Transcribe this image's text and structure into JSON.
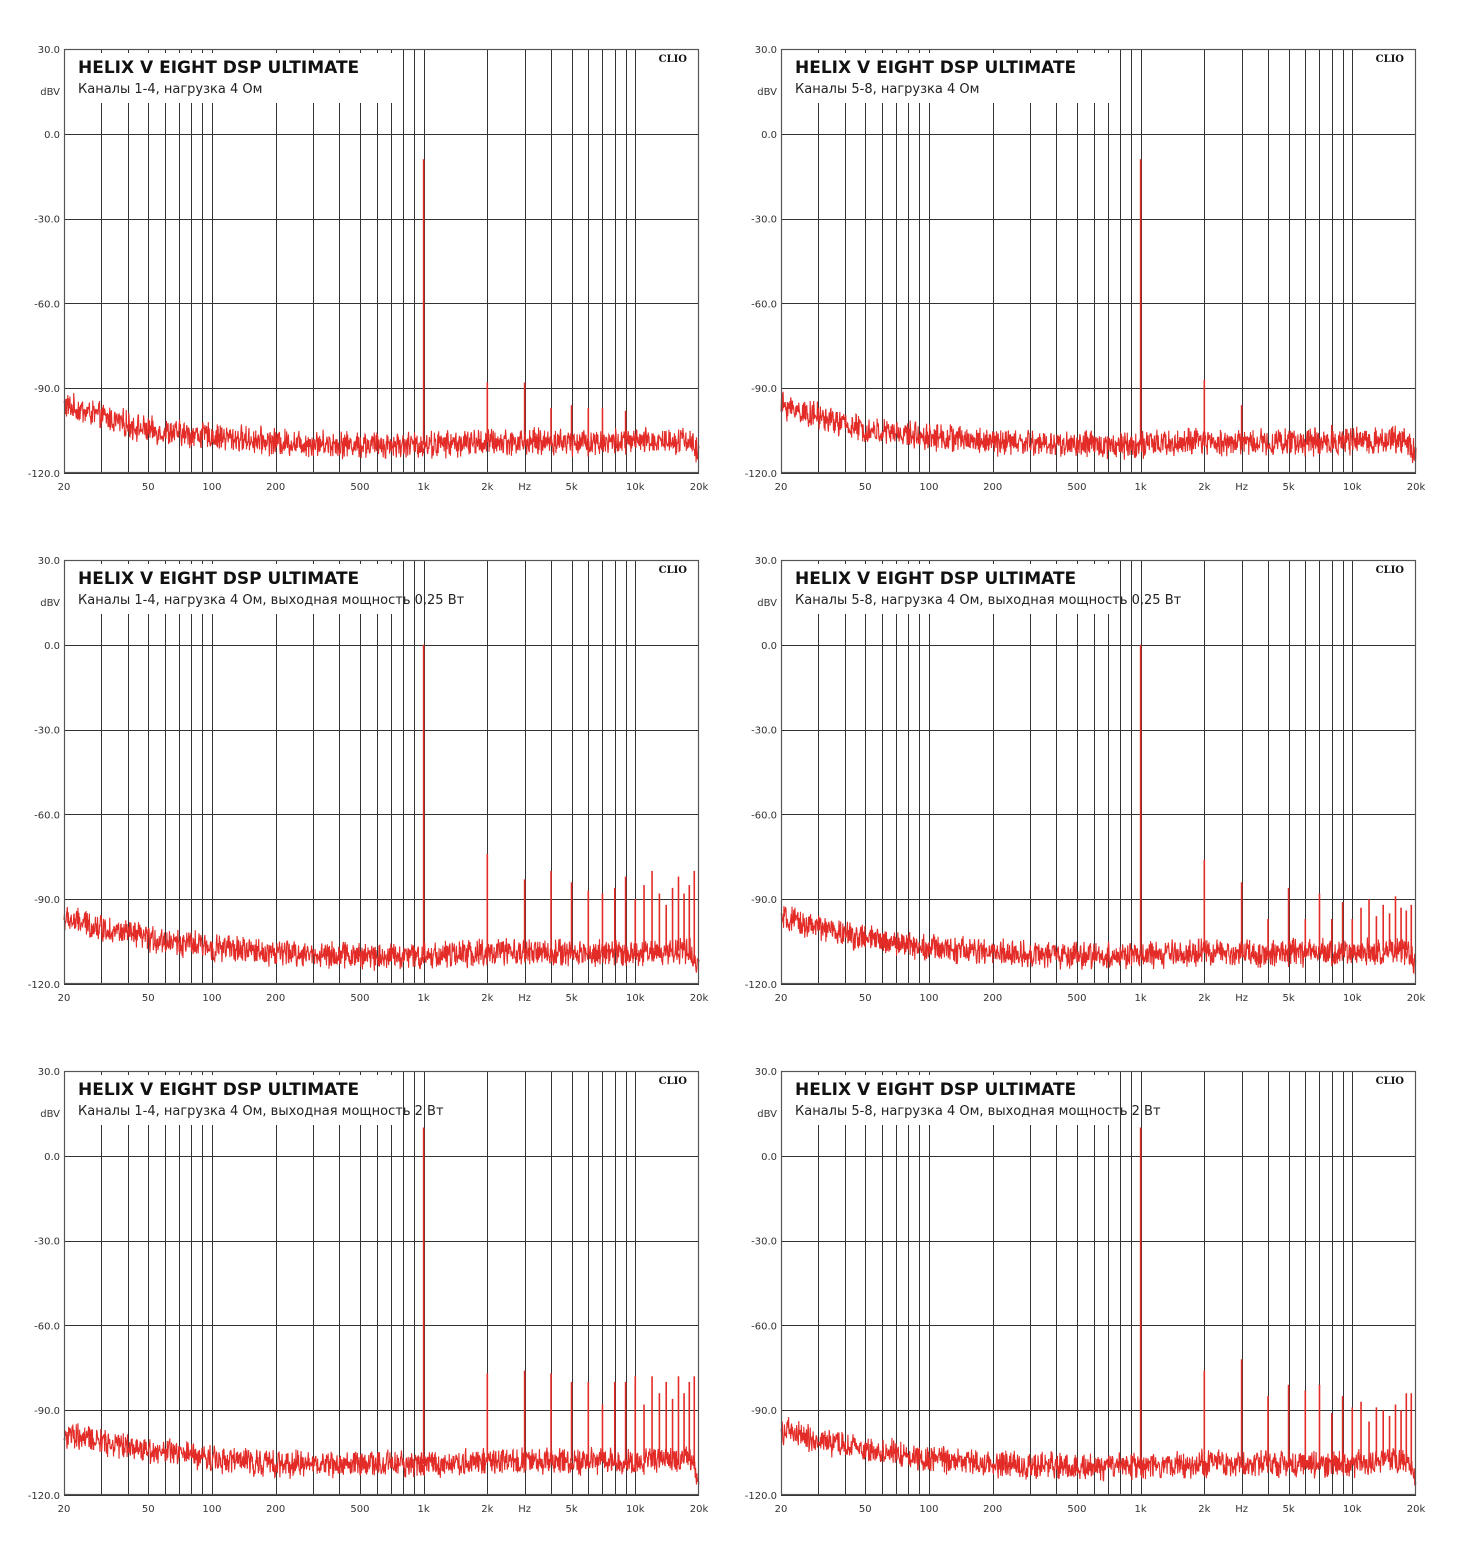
{
  "colors": {
    "trace": "#e32b27",
    "grid": "#333333",
    "frame": "#555555",
    "background": "#ffffff"
  },
  "chart_data": [
    {
      "type": "line",
      "title": "HELIX V EIGHT DSP ULTIMATE",
      "subtitle": "Каналы 1-4, нагрузка 4 Ом",
      "brand": "CLIO",
      "ylabel": "dBV",
      "xunit": "Hz",
      "xscale": "log",
      "xlim": [
        20,
        20000
      ],
      "ylim": [
        -120,
        30
      ],
      "yticks": [
        "30.0",
        "0.0",
        "-30.0",
        "-60.0",
        "-90.0",
        "-120.0"
      ],
      "xticks": [
        "20",
        "50",
        "100",
        "200",
        "500",
        "1k",
        "2k",
        "5k",
        "10k",
        "20k"
      ],
      "series": [
        {
          "noise_floor": [
            [
              20,
              -96
            ],
            [
              30,
              -100
            ],
            [
              50,
              -105
            ],
            [
              100,
              -107
            ],
            [
              200,
              -109
            ],
            [
              500,
              -110
            ],
            [
              1000,
              -110
            ],
            [
              2000,
              -109
            ],
            [
              5000,
              -109
            ],
            [
              10000,
              -109
            ],
            [
              18000,
              -108
            ],
            [
              20000,
              -114
            ]
          ],
          "peaks": [
            [
              1000,
              -9
            ],
            [
              2000,
              -88
            ],
            [
              3000,
              -88
            ],
            [
              4000,
              -97
            ],
            [
              5000,
              -96
            ],
            [
              6000,
              -97
            ],
            [
              7000,
              -97
            ],
            [
              9000,
              -98
            ]
          ]
        }
      ]
    },
    {
      "type": "line",
      "title": "HELIX V EIGHT DSP ULTIMATE",
      "subtitle": "Каналы 5-8, нагрузка 4 Ом",
      "brand": "CLIO",
      "ylabel": "dBV",
      "xunit": "Hz",
      "xscale": "log",
      "xlim": [
        20,
        20000
      ],
      "ylim": [
        -120,
        30
      ],
      "yticks": [
        "30.0",
        "0.0",
        "-30.0",
        "-60.0",
        "-90.0",
        "-120.0"
      ],
      "xticks": [
        "20",
        "50",
        "100",
        "200",
        "500",
        "1k",
        "2k",
        "5k",
        "10k",
        "20k"
      ],
      "series": [
        {
          "noise_floor": [
            [
              20,
              -96
            ],
            [
              30,
              -100
            ],
            [
              50,
              -105
            ],
            [
              100,
              -107
            ],
            [
              200,
              -109
            ],
            [
              500,
              -110
            ],
            [
              1000,
              -110
            ],
            [
              2000,
              -109
            ],
            [
              5000,
              -109
            ],
            [
              10000,
              -109
            ],
            [
              18000,
              -108
            ],
            [
              20000,
              -114
            ]
          ],
          "peaks": [
            [
              1000,
              -9
            ],
            [
              2000,
              -87
            ],
            [
              3000,
              -96
            ],
            [
              8000,
              -103
            ]
          ]
        }
      ]
    },
    {
      "type": "line",
      "title": "HELIX V EIGHT DSP ULTIMATE",
      "subtitle": "Каналы 1-4, нагрузка 4 Ом, выходная мощность 0,25 Вт",
      "brand": "CLIO",
      "ylabel": "dBV",
      "xunit": "Hz",
      "xscale": "log",
      "xlim": [
        20,
        20000
      ],
      "ylim": [
        -120,
        30
      ],
      "yticks": [
        "30.0",
        "0.0",
        "-30.0",
        "-60.0",
        "-90.0",
        "-120.0"
      ],
      "xticks": [
        "20",
        "50",
        "100",
        "200",
        "500",
        "1k",
        "2k",
        "5k",
        "10k",
        "20k"
      ],
      "series": [
        {
          "noise_floor": [
            [
              20,
              -97
            ],
            [
              30,
              -100
            ],
            [
              50,
              -104
            ],
            [
              100,
              -107
            ],
            [
              200,
              -109
            ],
            [
              500,
              -110
            ],
            [
              1000,
              -110
            ],
            [
              2000,
              -109
            ],
            [
              5000,
              -109
            ],
            [
              10000,
              -109
            ],
            [
              18000,
              -108
            ],
            [
              20000,
              -114
            ]
          ],
          "peaks": [
            [
              1000,
              0
            ],
            [
              2000,
              -74
            ],
            [
              3000,
              -83
            ],
            [
              4000,
              -80
            ],
            [
              5000,
              -84
            ],
            [
              6000,
              -87
            ],
            [
              7000,
              -88
            ],
            [
              8000,
              -86
            ],
            [
              9000,
              -82
            ],
            [
              10000,
              -90
            ],
            [
              11000,
              -85
            ],
            [
              12000,
              -80
            ],
            [
              13000,
              -88
            ],
            [
              14000,
              -92
            ],
            [
              15000,
              -86
            ],
            [
              16000,
              -82
            ],
            [
              17000,
              -88
            ],
            [
              18000,
              -85
            ],
            [
              19000,
              -80
            ]
          ]
        }
      ]
    },
    {
      "type": "line",
      "title": "HELIX V EIGHT DSP ULTIMATE",
      "subtitle": "Каналы 5-8, нагрузка 4 Ом, выходная мощность 0,25 Вт",
      "brand": "CLIO",
      "ylabel": "dBV",
      "xunit": "Hz",
      "xscale": "log",
      "xlim": [
        20,
        20000
      ],
      "ylim": [
        -120,
        30
      ],
      "yticks": [
        "30.0",
        "0.0",
        "-30.0",
        "-60.0",
        "-90.0",
        "-120.0"
      ],
      "xticks": [
        "20",
        "50",
        "100",
        "200",
        "500",
        "1k",
        "2k",
        "5k",
        "10k",
        "20k"
      ],
      "series": [
        {
          "noise_floor": [
            [
              20,
              -97
            ],
            [
              30,
              -100
            ],
            [
              50,
              -104
            ],
            [
              100,
              -107
            ],
            [
              200,
              -109
            ],
            [
              500,
              -110
            ],
            [
              1000,
              -110
            ],
            [
              2000,
              -109
            ],
            [
              5000,
              -109
            ],
            [
              10000,
              -109
            ],
            [
              18000,
              -108
            ],
            [
              20000,
              -114
            ]
          ],
          "peaks": [
            [
              1000,
              0
            ],
            [
              2000,
              -76
            ],
            [
              3000,
              -84
            ],
            [
              4000,
              -97
            ],
            [
              5000,
              -86
            ],
            [
              6000,
              -97
            ],
            [
              7000,
              -88
            ],
            [
              8000,
              -97
            ],
            [
              9000,
              -91
            ],
            [
              10000,
              -97
            ],
            [
              11000,
              -93
            ],
            [
              12000,
              -90
            ],
            [
              13000,
              -96
            ],
            [
              14000,
              -92
            ],
            [
              15000,
              -95
            ],
            [
              16000,
              -89
            ],
            [
              17000,
              -93
            ],
            [
              18000,
              -94
            ],
            [
              19000,
              -92
            ]
          ]
        }
      ]
    },
    {
      "type": "line",
      "title": "HELIX V EIGHT DSP ULTIMATE",
      "subtitle": "Каналы 1-4, нагрузка 4 Ом, выходная мощность 2 Вт",
      "brand": "CLIO",
      "ylabel": "dBV",
      "xunit": "Hz",
      "xscale": "log",
      "xlim": [
        20,
        20000
      ],
      "ylim": [
        -120,
        30
      ],
      "yticks": [
        "30.0",
        "0.0",
        "-30.0",
        "-60.0",
        "-90.0",
        "-120.0"
      ],
      "xticks": [
        "20",
        "50",
        "100",
        "200",
        "500",
        "1k",
        "2k",
        "5k",
        "10k",
        "20k"
      ],
      "series": [
        {
          "noise_floor": [
            [
              20,
              -99
            ],
            [
              30,
              -101
            ],
            [
              50,
              -104
            ],
            [
              100,
              -107
            ],
            [
              200,
              -109
            ],
            [
              500,
              -109
            ],
            [
              1000,
              -109
            ],
            [
              2000,
              -108
            ],
            [
              5000,
              -108
            ],
            [
              10000,
              -108
            ],
            [
              18000,
              -107
            ],
            [
              20000,
              -114
            ]
          ],
          "peaks": [
            [
              1000,
              10
            ],
            [
              2000,
              -77
            ],
            [
              3000,
              -76
            ],
            [
              4000,
              -77
            ],
            [
              5000,
              -80
            ],
            [
              6000,
              -80
            ],
            [
              7000,
              -88
            ],
            [
              8000,
              -80
            ],
            [
              9000,
              -80
            ],
            [
              10000,
              -78
            ],
            [
              11000,
              -88
            ],
            [
              12000,
              -78
            ],
            [
              13000,
              -84
            ],
            [
              14000,
              -80
            ],
            [
              15000,
              -86
            ],
            [
              16000,
              -78
            ],
            [
              17000,
              -84
            ],
            [
              18000,
              -80
            ],
            [
              19000,
              -78
            ]
          ]
        }
      ]
    },
    {
      "type": "line",
      "title": "HELIX V EIGHT DSP ULTIMATE",
      "subtitle": "Каналы 5-8, нагрузка 4 Ом, выходная мощность 2 Вт",
      "brand": "CLIO",
      "ylabel": "dBV",
      "xunit": "Hz",
      "xscale": "log",
      "xlim": [
        20,
        20000
      ],
      "ylim": [
        -120,
        30
      ],
      "yticks": [
        "30.0",
        "0.0",
        "-30.0",
        "-60.0",
        "-90.0",
        "-120.0"
      ],
      "xticks": [
        "20",
        "50",
        "100",
        "200",
        "500",
        "1k",
        "2k",
        "5k",
        "10k",
        "20k"
      ],
      "series": [
        {
          "noise_floor": [
            [
              20,
              -97
            ],
            [
              30,
              -101
            ],
            [
              50,
              -104
            ],
            [
              100,
              -107
            ],
            [
              200,
              -109
            ],
            [
              500,
              -110
            ],
            [
              1000,
              -110
            ],
            [
              2000,
              -109
            ],
            [
              5000,
              -109
            ],
            [
              10000,
              -109
            ],
            [
              18000,
              -108
            ],
            [
              20000,
              -114
            ]
          ],
          "peaks": [
            [
              1000,
              10
            ],
            [
              2000,
              -76
            ],
            [
              3000,
              -72
            ],
            [
              4000,
              -85
            ],
            [
              5000,
              -81
            ],
            [
              6000,
              -83
            ],
            [
              7000,
              -81
            ],
            [
              8000,
              -91
            ],
            [
              9000,
              -85
            ],
            [
              10000,
              -89
            ],
            [
              11000,
              -87
            ],
            [
              12000,
              -94
            ],
            [
              13000,
              -89
            ],
            [
              14000,
              -90
            ],
            [
              15000,
              -92
            ],
            [
              16000,
              -88
            ],
            [
              17000,
              -90
            ],
            [
              18000,
              -84
            ],
            [
              19000,
              -84
            ]
          ]
        }
      ]
    }
  ]
}
